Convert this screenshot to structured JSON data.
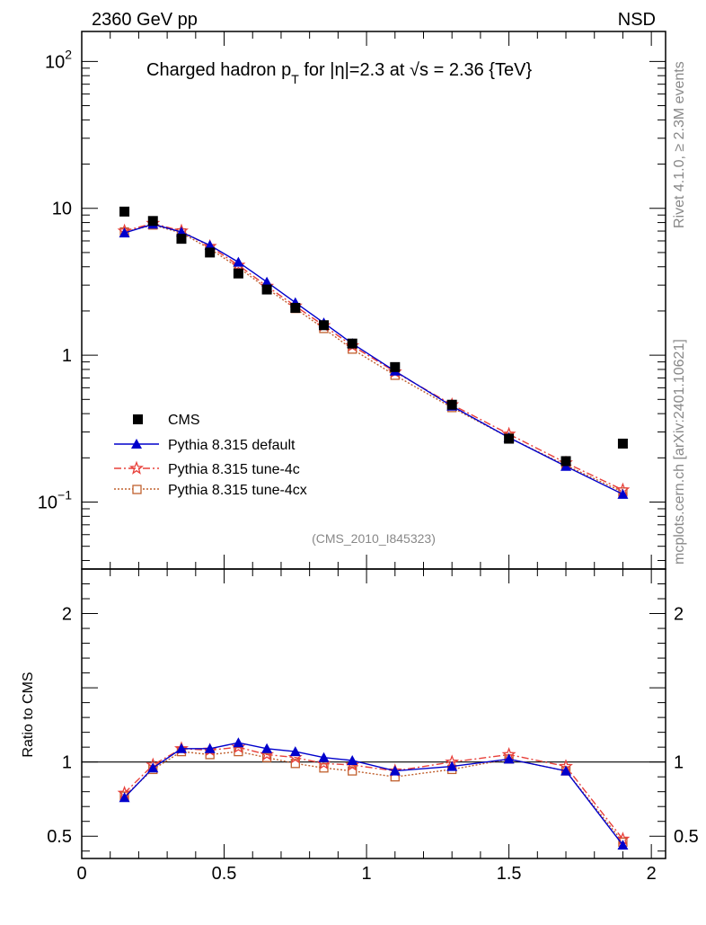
{
  "header": {
    "left_label": "2360 GeV pp",
    "right_label": "NSD"
  },
  "side_labels": {
    "rivet": "Rivet 4.1.0, ≥ 2.3M events",
    "mcplots": "mcplots.cern.ch [arXiv:2401.10621]"
  },
  "colors": {
    "cms": "#000000",
    "default": "#0000cc",
    "tune4c": "#e8403a",
    "tune4cx": "#c0602e"
  },
  "chart_data": [
    {
      "type": "line",
      "title": "Charged hadron p_T for |η|=2.3 at √s = 2.36 {TeV}",
      "title_parts": {
        "a": "Charged hadron p",
        "sub": "T",
        "b": " for |η|=2.3 at ",
        "sqrt": "√",
        "c": "s = 2.36 {TeV}"
      },
      "annotation": "(CMS_2010_I845323)",
      "yscale": "log",
      "ylim": [
        0.035,
        160
      ],
      "xlim": [
        0,
        2.05
      ],
      "yticks": [
        {
          "value": 100,
          "base": "10",
          "exp": "2"
        },
        {
          "value": 10,
          "base": "10",
          "exp": ""
        },
        {
          "value": 1,
          "base": "1",
          "exp": ""
        },
        {
          "value": 0.1,
          "base": "10",
          "exp": "−1"
        }
      ],
      "legend_position": "lower-left",
      "series": [
        {
          "name": "CMS",
          "key": "cms",
          "x": [
            0.15,
            0.25,
            0.35,
            0.45,
            0.55,
            0.65,
            0.75,
            0.85,
            0.95,
            1.1,
            1.3,
            1.5,
            1.7,
            1.9
          ],
          "values": [
            9.5,
            8.2,
            6.2,
            5.0,
            3.6,
            2.8,
            2.1,
            1.6,
            1.2,
            0.83,
            0.46,
            0.27,
            0.19,
            0.25
          ]
        },
        {
          "name": "Pythia 8.315 default",
          "key": "default",
          "x": [
            0.15,
            0.25,
            0.35,
            0.45,
            0.55,
            0.65,
            0.75,
            0.85,
            0.95,
            1.1,
            1.3,
            1.5,
            1.7,
            1.9
          ],
          "values": [
            6.8,
            7.8,
            6.9,
            5.6,
            4.3,
            3.15,
            2.28,
            1.66,
            1.2,
            0.78,
            0.45,
            0.275,
            0.175,
            0.113
          ]
        },
        {
          "name": "Pythia 8.315 tune-4c",
          "key": "tune4c",
          "x": [
            0.15,
            0.25,
            0.35,
            0.45,
            0.55,
            0.65,
            0.75,
            0.85,
            0.95,
            1.1,
            1.3,
            1.5,
            1.7,
            1.9
          ],
          "values": [
            7.0,
            7.9,
            7.0,
            5.5,
            4.1,
            2.95,
            2.16,
            1.59,
            1.16,
            0.77,
            0.46,
            0.29,
            0.185,
            0.121
          ]
        },
        {
          "name": "Pythia 8.315 tune-4cx",
          "key": "tune4cx",
          "x": [
            0.15,
            0.25,
            0.35,
            0.45,
            0.55,
            0.65,
            0.75,
            0.85,
            0.95,
            1.1,
            1.3,
            1.5,
            1.7,
            1.9
          ],
          "values": [
            6.9,
            7.7,
            6.8,
            5.3,
            3.95,
            2.85,
            2.08,
            1.52,
            1.1,
            0.73,
            0.44,
            0.275,
            0.178,
            0.117
          ]
        }
      ]
    },
    {
      "type": "line",
      "ylabel": "Ratio to CMS",
      "yscale": "linear",
      "ylim": [
        0.35,
        2.3
      ],
      "xlim": [
        0,
        2.05
      ],
      "reference_line": 1,
      "yticks": [
        {
          "value": 2,
          "label": "2"
        },
        {
          "value": 1,
          "label": "1"
        },
        {
          "value": 0.5,
          "label": "0.5"
        }
      ],
      "xticks": [
        {
          "value": 0,
          "label": "0"
        },
        {
          "value": 0.5,
          "label": "0.5"
        },
        {
          "value": 1,
          "label": "1"
        },
        {
          "value": 1.5,
          "label": "1.5"
        },
        {
          "value": 2,
          "label": "2"
        }
      ],
      "series": [
        {
          "name": "Pythia 8.315 default",
          "key": "default",
          "x": [
            0.15,
            0.25,
            0.35,
            0.45,
            0.55,
            0.65,
            0.75,
            0.85,
            0.95,
            1.1,
            1.3,
            1.5,
            1.7,
            1.9
          ],
          "values": [
            0.76,
            0.96,
            1.09,
            1.09,
            1.13,
            1.09,
            1.07,
            1.03,
            1.01,
            0.94,
            0.97,
            1.02,
            0.94,
            0.44
          ]
        },
        {
          "name": "Pythia 8.315 tune-4c",
          "key": "tune4c",
          "x": [
            0.15,
            0.25,
            0.35,
            0.45,
            0.55,
            0.65,
            0.75,
            0.85,
            0.95,
            1.1,
            1.3,
            1.5,
            1.7,
            1.9
          ],
          "values": [
            0.79,
            0.98,
            1.09,
            1.08,
            1.1,
            1.05,
            1.03,
            0.99,
            0.98,
            0.94,
            1.0,
            1.05,
            0.97,
            0.48
          ]
        },
        {
          "name": "Pythia 8.315 tune-4cx",
          "key": "tune4cx",
          "x": [
            0.15,
            0.25,
            0.35,
            0.45,
            0.55,
            0.65,
            0.75,
            0.85,
            0.95,
            1.1,
            1.3,
            1.5,
            1.7,
            1.9
          ],
          "values": [
            0.77,
            0.95,
            1.07,
            1.05,
            1.07,
            1.03,
            0.99,
            0.96,
            0.94,
            0.9,
            0.95,
            1.02,
            0.94,
            0.46
          ]
        }
      ]
    }
  ]
}
